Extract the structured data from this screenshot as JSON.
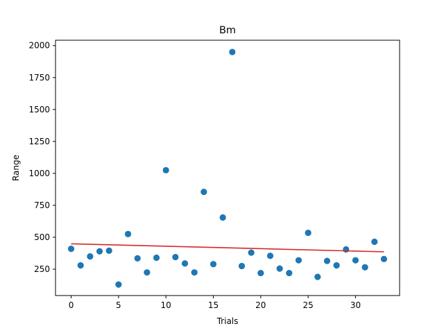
{
  "chart_data": {
    "type": "scatter",
    "title": "Bm",
    "xlabel": "Trials",
    "ylabel": "Range",
    "xlim": [
      -1.65,
      34.65
    ],
    "ylim": [
      44,
      2042
    ],
    "xticks": [
      0,
      5,
      10,
      15,
      20,
      25,
      30
    ],
    "yticks": [
      250,
      500,
      750,
      1000,
      1250,
      1500,
      1750,
      2000
    ],
    "grid": false,
    "points": {
      "x": [
        0,
        1,
        2,
        3,
        4,
        5,
        6,
        7,
        8,
        9,
        10,
        11,
        12,
        13,
        14,
        15,
        16,
        17,
        18,
        19,
        20,
        21,
        22,
        23,
        24,
        25,
        26,
        27,
        28,
        29,
        30,
        31,
        32,
        33
      ],
      "y": [
        410,
        280,
        350,
        390,
        395,
        130,
        525,
        335,
        225,
        340,
        1025,
        345,
        295,
        225,
        855,
        290,
        655,
        1950,
        275,
        380,
        220,
        355,
        255,
        220,
        320,
        535,
        190,
        315,
        280,
        405,
        320,
        265,
        465,
        330
      ]
    },
    "trendline": {
      "x": [
        0,
        33
      ],
      "y": [
        449,
        386
      ]
    },
    "colors": {
      "points": "#1f77b4",
      "trendline": "#d62728"
    }
  }
}
